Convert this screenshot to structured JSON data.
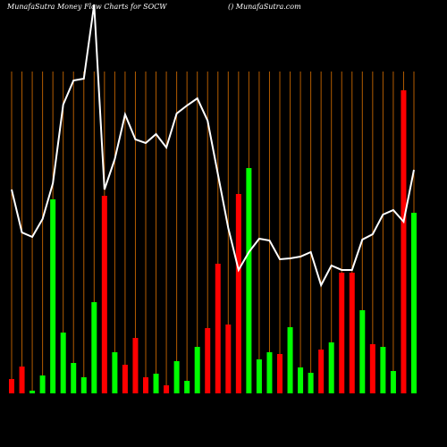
{
  "chart_data": {
    "type": "bar",
    "title": "MunafaSutra  Money Flow  Charts for SOCW",
    "subtitle": "() MunafaSutra.com",
    "categories": [
      null,
      null,
      null,
      null,
      null,
      null,
      null,
      null,
      null,
      null,
      null,
      null,
      null,
      null,
      null,
      null,
      null,
      null,
      null,
      null,
      null,
      null,
      null,
      null,
      null,
      null,
      null,
      null,
      null,
      null,
      null,
      null,
      null,
      null,
      null,
      null,
      null,
      null,
      null,
      null
    ],
    "ylim": [
      0,
      440
    ],
    "series": [
      {
        "colors": [
          "#ff0000",
          "#ff0000",
          "#00ff00",
          "#00ff00",
          "#00ff00",
          "#00ff00",
          "#00ff00",
          "#00ff00",
          "#00ff00",
          "#ff0000",
          "#00ff00",
          "#ff0000",
          "#ff0000",
          "#ff0000",
          "#00ff00",
          "#ff0000",
          "#00ff00",
          "#00ff00",
          "#00ff00",
          "#ff0000",
          "#ff0000",
          "#ff0000",
          "#ff0000",
          "#00ff00",
          "#00ff00",
          "#00ff00",
          "#ff0000",
          "#00ff00",
          "#00ff00",
          "#00ff00",
          "#ff0000",
          "#00ff00",
          "#ff0000",
          "#ff0000",
          "#00ff00",
          "#ff0000",
          "#00ff00",
          "#00ff00",
          "#ff0000",
          "#00ff00"
        ],
        "values": [
          16,
          30,
          3,
          20,
          217,
          68,
          34,
          18,
          102,
          221,
          46,
          32,
          62,
          18,
          22,
          9,
          36,
          14,
          52,
          73,
          145,
          77,
          223,
          252,
          38,
          46,
          44,
          74,
          29,
          23,
          49,
          57,
          135,
          135,
          93,
          55,
          52,
          25,
          339,
          202
        ]
      },
      {
        "type": "line",
        "color": "#ffffff",
        "values": [
          228,
          180,
          175,
          195,
          235,
          323,
          350,
          352,
          435,
          228,
          262,
          312,
          284,
          280,
          290,
          275,
          313,
          322,
          330,
          305,
          245,
          185,
          138,
          158,
          173,
          171,
          150,
          151,
          153,
          158,
          121,
          143,
          138,
          138,
          172,
          178,
          200,
          205,
          192,
          250
        ]
      }
    ]
  }
}
